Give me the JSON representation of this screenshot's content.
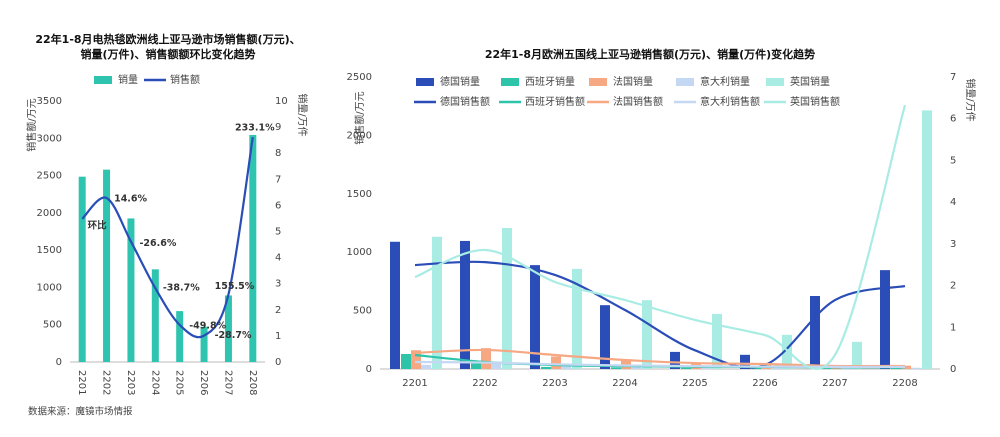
{
  "source": "数据来源：魔镜市场情报",
  "chart_data": [
    {
      "type": "bar_line",
      "title": [
        "22年1-8月电热毯欧洲线上亚马逊市场销售额(万元)、",
        "销量(万件)、销售额额环比变化趋势"
      ],
      "ylabel": "销售额/万元",
      "y2label": "销量/万件",
      "categories": [
        "2201",
        "2202",
        "2203",
        "2204",
        "2205",
        "2206",
        "2207",
        "2208"
      ],
      "series": [
        {
          "name": "销量",
          "kind": "bar",
          "axis": "y2",
          "color": "#2ec4b0",
          "values": [
            7.1,
            7.37,
            5.5,
            3.55,
            1.95,
            1.35,
            2.55,
            8.7
          ]
        },
        {
          "name": "销售额",
          "kind": "line",
          "color": "#2a4db7",
          "values": [
            1920,
            2200,
            1615,
            990,
            497,
            354,
            905,
            3015
          ]
        }
      ],
      "growth_labels": [
        "环比",
        "14.6%",
        "-26.6%",
        "-38.7%",
        "-49.8%",
        "-28.7%",
        "155.5%",
        "233.1%"
      ],
      "ylim": [
        0,
        3500
      ],
      "yticks": [
        0,
        500,
        1000,
        1500,
        2000,
        2500,
        3000,
        3500
      ],
      "y2lim": [
        0,
        10
      ],
      "y2ticks": [
        0,
        1,
        2,
        3,
        4,
        5,
        6,
        7,
        8,
        9,
        10
      ]
    },
    {
      "type": "bar_line",
      "title": [
        "22年1-8月欧洲五国线上亚马逊销售额(万元)、销量(万件)变化趋势"
      ],
      "ylabel": "销售额/万元",
      "y2label": "销量/万件",
      "categories": [
        "2201",
        "2202",
        "2203",
        "2204",
        "2205",
        "2206",
        "2207",
        "2208"
      ],
      "series": [
        {
          "name": "德国销量",
          "kind": "bar",
          "axis": "y2",
          "color": "#2a4db7",
          "values": [
            3.05,
            3.07,
            2.49,
            1.53,
            0.41,
            0.34,
            1.75,
            2.37
          ]
        },
        {
          "name": "西班牙销量",
          "kind": "bar",
          "axis": "y2",
          "color": "#2ec4a9",
          "values": [
            0.36,
            0.17,
            0.05,
            0.04,
            0.03,
            0.03,
            0.02,
            0.02
          ]
        },
        {
          "name": "法国销量",
          "kind": "bar",
          "axis": "y2",
          "color": "#f6a883",
          "values": [
            0.45,
            0.5,
            0.3,
            0.2,
            0.15,
            0.1,
            0.08,
            0.08
          ]
        },
        {
          "name": "意大利销量",
          "kind": "bar",
          "axis": "y2",
          "color": "#c5d8f3",
          "values": [
            0.1,
            0.15,
            0.08,
            0.06,
            0.05,
            0.04,
            0.03,
            0.03
          ]
        },
        {
          "name": "英国销量",
          "kind": "bar",
          "axis": "y2",
          "color": "#a8ece4",
          "values": [
            3.17,
            3.38,
            2.4,
            1.65,
            1.32,
            0.82,
            0.65,
            6.2
          ]
        },
        {
          "name": "德国销售额",
          "kind": "line",
          "color": "#2a4db7",
          "values": [
            890,
            915,
            805,
            505,
            160,
            35,
            590,
            710
          ]
        },
        {
          "name": "西班牙销售额",
          "kind": "line",
          "color": "#2ec4a9",
          "values": [
            120,
            60,
            34,
            25,
            20,
            18,
            15,
            15
          ]
        },
        {
          "name": "法国销售额",
          "kind": "line",
          "color": "#f6a883",
          "values": [
            137,
            163,
            120,
            77,
            51,
            43,
            26,
            26
          ]
        },
        {
          "name": "意大利销售额",
          "kind": "line",
          "color": "#c5d8f3",
          "values": [
            60,
            55,
            40,
            30,
            25,
            20,
            18,
            18
          ]
        },
        {
          "name": "英国销售额",
          "kind": "line",
          "color": "#a8ece4",
          "values": [
            787,
            1019,
            745,
            590,
            420,
            290,
            120,
            2260
          ]
        }
      ],
      "ylim": [
        0,
        2500
      ],
      "yticks": [
        0,
        500,
        1000,
        1500,
        2000,
        2500
      ],
      "y2lim": [
        0,
        7
      ],
      "y2ticks": [
        0,
        1,
        2,
        3,
        4,
        5,
        6,
        7
      ]
    }
  ]
}
